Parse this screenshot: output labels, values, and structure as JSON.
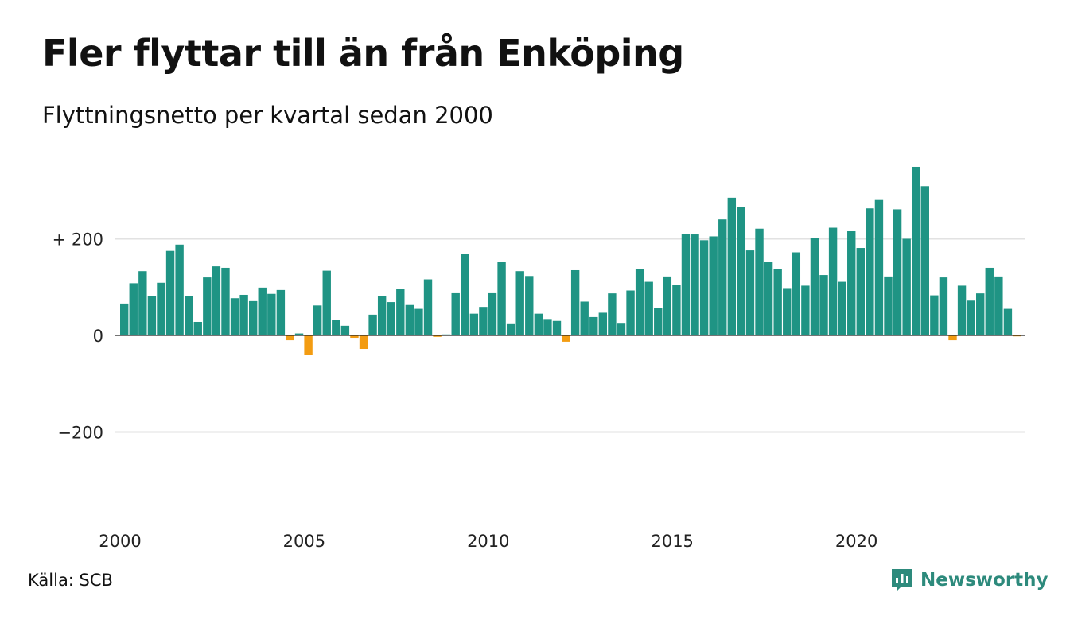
{
  "header": {
    "title": "Fler flyttar till än från Enköping",
    "subtitle": "Flyttningsnetto per kvartal sedan 2000"
  },
  "footer": {
    "source": "Källa: SCB",
    "brand": "Newsworthy"
  },
  "colors": {
    "positive": "#1f9484",
    "negative": "#f39c12",
    "grid": "#e2e2e2",
    "brand": "#2d8a7c"
  },
  "chart_data": {
    "type": "bar",
    "x_start": "2000 Q1",
    "frequency": "quarterly",
    "values": [
      66,
      108,
      133,
      81,
      109,
      175,
      188,
      82,
      28,
      120,
      143,
      140,
      77,
      84,
      71,
      99,
      86,
      94,
      -10,
      4,
      -40,
      62,
      134,
      32,
      20,
      -5,
      -28,
      43,
      81,
      69,
      96,
      63,
      55,
      116,
      -3,
      2,
      89,
      168,
      45,
      59,
      89,
      152,
      25,
      133,
      123,
      45,
      34,
      30,
      -13,
      135,
      70,
      38,
      47,
      87,
      26,
      93,
      138,
      111,
      57,
      122,
      105,
      210,
      209,
      197,
      205,
      240,
      285,
      266,
      176,
      221,
      153,
      137,
      98,
      172,
      103,
      201,
      125,
      223,
      111,
      216,
      181,
      263,
      282,
      122,
      261,
      200,
      349,
      309,
      83,
      120,
      -10,
      103,
      72,
      87,
      140,
      122,
      55,
      -2
    ],
    "x_ticks": [
      "2000",
      "2005",
      "2010",
      "2015",
      "2020"
    ],
    "y_ticks": [
      "+ 200",
      "0",
      "−200"
    ],
    "y_tick_values": [
      200,
      0,
      -200
    ],
    "ylim": [
      -370,
      370
    ],
    "grid": true,
    "legend": "none"
  }
}
